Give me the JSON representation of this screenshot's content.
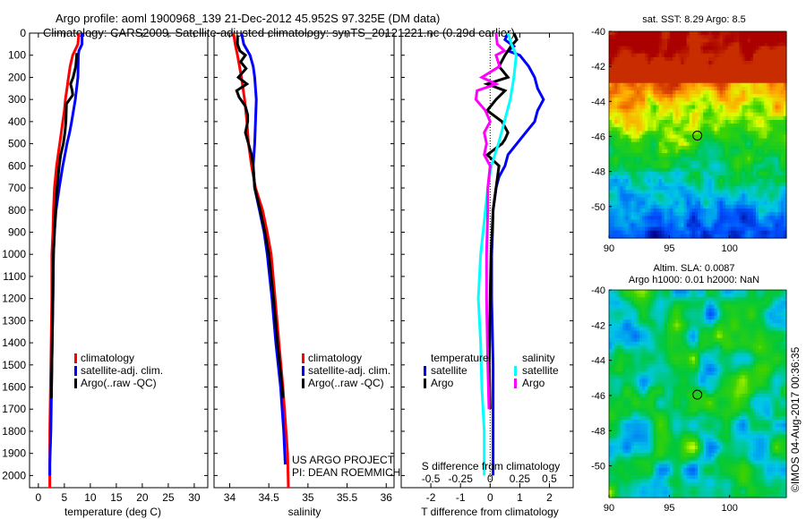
{
  "header": {
    "line1": "Argo profile: aoml 1900968_139 21-Dec-2012 45.952S 97.325E (DM data)",
    "line2": "Climatology: CARS2009. Satellite-adjusted climatology: synTS_20121221.nc (0.29d earlier)"
  },
  "credits": {
    "project": "US ARGO PROJECT",
    "pi": "PI: DEAN ROEMMICH",
    "stamp": "©IMOS 04-Aug-2017 00:36:35"
  },
  "colors": {
    "climatology": "#ff0000",
    "satellite": "#0000ff",
    "argo": "#000000",
    "salinity_satellite": "#00ffff",
    "salinity_argo": "#ff00ff"
  },
  "chart_data": [
    {
      "type": "line",
      "title": "",
      "xlabel": "temperature (deg C)",
      "ylabel": "",
      "xlim": [
        -1.7,
        32.6
      ],
      "ylim": [
        2055,
        0
      ],
      "xticks": [
        "0",
        "5",
        "10",
        "15",
        "20",
        "25",
        "30"
      ],
      "yticks": [
        "0",
        "100",
        "200",
        "300",
        "400",
        "500",
        "600",
        "700",
        "800",
        "900",
        "1000",
        "1100",
        "1200",
        "1300",
        "1400",
        "1500",
        "1600",
        "1700",
        "1800",
        "1900",
        "2000"
      ],
      "legend": [
        "climatology",
        "satellite-adj. clim.",
        "Argo(..raw -QC)"
      ],
      "legend_position": "center",
      "series": [
        {
          "name": "climatology",
          "color": "#ff0000",
          "depth": [
            0,
            50,
            100,
            150,
            200,
            250,
            300,
            350,
            400,
            450,
            500,
            550,
            600,
            700,
            800,
            900,
            1000,
            1200,
            1500,
            1800,
            2055
          ],
          "values": [
            7.8,
            7.6,
            6.6,
            6.1,
            5.8,
            5.5,
            5.2,
            5.0,
            4.7,
            4.4,
            4.1,
            3.8,
            3.5,
            3.1,
            2.9,
            2.8,
            2.6,
            2.6,
            2.4,
            2.2,
            2.2
          ]
        },
        {
          "name": "satellite-adj. clim.",
          "color": "#0000ff",
          "depth": [
            0,
            50,
            80,
            100,
            200,
            300,
            400,
            450,
            500,
            550,
            600,
            700,
            800,
            900,
            1000,
            1200,
            1500,
            1800,
            1950,
            2000
          ],
          "values": [
            8.4,
            8.4,
            7.8,
            7.7,
            7.6,
            7.1,
            6.4,
            6.0,
            5.5,
            5.1,
            4.7,
            4.0,
            3.4,
            3.1,
            2.9,
            2.8,
            2.6,
            2.4,
            2.2,
            2.2
          ]
        },
        {
          "name": "Argo(..raw -QC)",
          "color": "#000000",
          "depth": [
            90,
            120,
            150,
            200,
            230,
            260,
            280,
            300,
            320,
            400,
            450,
            500,
            550,
            600,
            700,
            800,
            1000,
            1200,
            1500,
            1650
          ],
          "values": [
            7.4,
            7.3,
            7.2,
            6.7,
            6.2,
            6.5,
            6.6,
            6.0,
            5.4,
            5.3,
            5.1,
            4.8,
            4.3,
            4.0,
            3.6,
            3.3,
            2.9,
            2.8,
            2.6,
            2.5
          ]
        }
      ]
    },
    {
      "type": "line",
      "title": "",
      "xlabel": "salinity",
      "ylabel": "",
      "xlim": [
        33.8,
        36.1
      ],
      "ylim": [
        2055,
        0
      ],
      "xticks": [
        "34",
        "34.5",
        "35",
        "35.5",
        "36"
      ],
      "legend": [
        "climatology",
        "satellite-adj. clim.",
        "Argo(..raw -QC)"
      ],
      "legend_position": "center-right",
      "series": [
        {
          "name": "climatology",
          "color": "#ff0000",
          "depth": [
            0,
            50,
            100,
            200,
            300,
            400,
            500,
            600,
            700,
            800,
            900,
            1000,
            1200,
            1400,
            1600,
            1800,
            1900,
            2055
          ],
          "values": [
            34.05,
            34.07,
            34.1,
            34.15,
            34.19,
            34.22,
            34.24,
            34.28,
            34.33,
            34.42,
            34.48,
            34.53,
            34.58,
            34.63,
            34.68,
            34.72,
            34.74,
            34.75
          ]
        },
        {
          "name": "satellite-adj. clim.",
          "color": "#0000ff",
          "depth": [
            0,
            50,
            100,
            150,
            200,
            300,
            400,
            500,
            600,
            700,
            800,
            900,
            1000,
            1200,
            1400,
            1600,
            1800,
            1950
          ],
          "values": [
            34.15,
            34.18,
            34.26,
            34.3,
            34.32,
            34.34,
            34.33,
            34.32,
            34.3,
            34.32,
            34.38,
            34.44,
            34.48,
            34.54,
            34.59,
            34.65,
            34.69,
            34.71
          ]
        },
        {
          "name": "Argo(..raw -QC)",
          "color": "#000000",
          "depth": [
            10,
            50,
            80,
            100,
            130,
            160,
            200,
            230,
            260,
            290,
            330,
            370,
            400,
            450,
            500,
            550,
            600,
            700,
            800,
            900,
            1000,
            1200,
            1400,
            1600,
            1650
          ],
          "values": [
            34.1,
            34.1,
            34.13,
            34.2,
            34.14,
            34.21,
            34.11,
            34.22,
            34.09,
            34.12,
            34.2,
            34.23,
            34.23,
            34.2,
            34.24,
            34.28,
            34.3,
            34.32,
            34.39,
            34.45,
            34.5,
            34.56,
            34.61,
            34.67,
            34.68
          ]
        }
      ]
    },
    {
      "type": "line",
      "title": "",
      "xlabel": "T difference from climatology",
      "x2label": "S difference from climatology",
      "ylabel": "",
      "xlim": [
        -3.0,
        2.8
      ],
      "x2lim": [
        -0.75,
        0.7
      ],
      "ylim": [
        2055,
        0
      ],
      "xticks": [
        "-2",
        "-1",
        "0",
        "1",
        "2"
      ],
      "x2ticks": [
        "-0.5",
        "-0.25",
        "0",
        "0.25",
        "0.5"
      ],
      "legend": {
        "temperature": [
          "satellite",
          "Argo"
        ],
        "salinity": [
          "satellite",
          "Argo"
        ]
      },
      "legend_position": "center",
      "series": [
        {
          "name": "temperature satellite",
          "color": "#0000ff",
          "axis": "T",
          "depth": [
            0,
            30,
            60,
            80,
            100,
            150,
            200,
            250,
            300,
            350,
            400,
            450,
            500,
            550,
            600,
            650,
            700,
            800,
            900,
            1000,
            1200,
            1500,
            1800,
            2000
          ],
          "values": [
            0.6,
            0.5,
            0.8,
            0.6,
            1.0,
            1.3,
            1.5,
            1.6,
            1.8,
            1.6,
            1.5,
            1.2,
            0.9,
            0.6,
            0.5,
            0.3,
            0.2,
            0.1,
            0.08,
            0.05,
            0.05,
            0.1,
            0.1,
            0.1
          ]
        },
        {
          "name": "temperature Argo",
          "color": "#000000",
          "axis": "T",
          "depth": [
            0,
            30,
            60,
            100,
            150,
            200,
            230,
            260,
            300,
            350,
            400,
            450,
            480,
            500,
            550,
            600,
            700,
            800,
            1000,
            1200,
            1500,
            1700
          ],
          "values": [
            0.8,
            0.9,
            0.7,
            0.5,
            0.3,
            0.6,
            -0.1,
            0.5,
            0.2,
            -0.1,
            0.4,
            0.6,
            0.5,
            0.4,
            -0.1,
            0.3,
            0.2,
            0.1,
            0.03,
            0.0,
            -0.03,
            0.0
          ]
        },
        {
          "name": "salinity satellite",
          "color": "#00ffff",
          "axis": "S",
          "depth": [
            0,
            50,
            100,
            150,
            200,
            300,
            400,
            500,
            600,
            700,
            800,
            900,
            1000,
            1200,
            1400,
            1600,
            1800,
            2000
          ],
          "values": [
            0.15,
            0.18,
            0.22,
            0.21,
            0.2,
            0.17,
            0.12,
            0.07,
            0.01,
            -0.02,
            -0.04,
            -0.06,
            -0.08,
            -0.1,
            -0.08,
            -0.07,
            -0.05,
            -0.05
          ]
        },
        {
          "name": "salinity Argo",
          "color": "#ff00ff",
          "axis": "S",
          "depth": [
            0,
            50,
            80,
            100,
            150,
            200,
            230,
            260,
            300,
            350,
            400,
            450,
            500,
            550,
            600,
            700,
            800,
            1000,
            1200,
            1500,
            1700
          ],
          "values": [
            0.05,
            0.06,
            0.12,
            0.05,
            0.08,
            -0.07,
            0.05,
            -0.11,
            -0.12,
            -0.04,
            0.0,
            -0.05,
            -0.03,
            -0.05,
            0.0,
            -0.02,
            -0.02,
            -0.03,
            -0.03,
            -0.02,
            -0.01
          ]
        }
      ]
    },
    {
      "type": "heatmap",
      "title": "sat. SST: 8.29 Argo: 8.5",
      "xlim": [
        90,
        104.7
      ],
      "ylim": [
        -51.8,
        -40
      ],
      "xticks": [
        "90",
        "95",
        "100"
      ],
      "yticks": [
        "-40",
        "-42",
        "-44",
        "-46",
        "-48",
        "-50"
      ],
      "marker": {
        "lon": 97.325,
        "lat": -45.952
      }
    },
    {
      "type": "heatmap",
      "title": "Altim. SLA: 0.0087",
      "subtitle": "Argo h1000: 0.01 h2000: NaN",
      "xlim": [
        90,
        104.7
      ],
      "ylim": [
        -51.8,
        -40
      ],
      "xticks": [
        "90",
        "95",
        "100"
      ],
      "yticks": [
        "-40",
        "-42",
        "-44",
        "-46",
        "-48",
        "-50"
      ],
      "marker": {
        "lon": 97.325,
        "lat": -45.952
      }
    }
  ]
}
